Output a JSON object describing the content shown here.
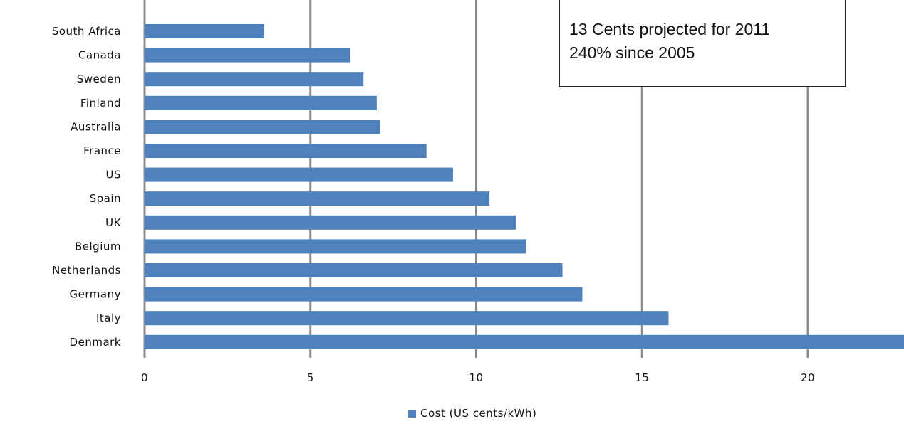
{
  "chart_data": {
    "type": "bar",
    "orientation": "horizontal",
    "title": "",
    "categories": [
      "South Africa",
      "Canada",
      "Sweden",
      "Finland",
      "Australia",
      "France",
      "US",
      "Spain",
      "UK",
      "Belgium",
      "Netherlands",
      "Germany",
      "Italy",
      "Denmark"
    ],
    "series": [
      {
        "name": "Cost (US cents/kWh)",
        "color": "#4f81bd",
        "values": [
          3.6,
          6.2,
          6.6,
          7.0,
          7.1,
          8.5,
          9.3,
          10.4,
          11.2,
          11.5,
          12.6,
          13.2,
          15.8,
          22.9
        ]
      }
    ],
    "xlim": [
      0,
      22.9
    ],
    "xticks": [
      0,
      5,
      10,
      15,
      20
    ],
    "grid": true,
    "legend_position": "bottom",
    "annotation_lines": [
      "13 Cents projected for 2011",
      "240% since 2005"
    ]
  }
}
